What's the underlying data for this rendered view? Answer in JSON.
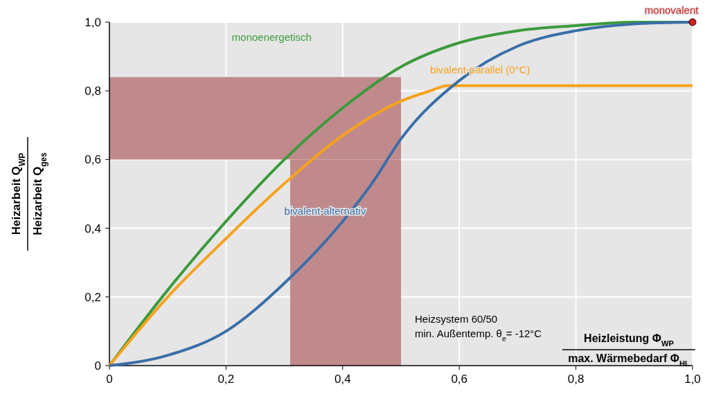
{
  "chart_data": {
    "type": "line",
    "xlabel": "Heizleistung Φ$_{WP}$\nmax. Wärmebedarf Φ$_{HL}$",
    "ylabel": "Heizarbeit Q$_{WP}$\nHeizarbeit Q$_{ges}$",
    "xlim": [
      0,
      1
    ],
    "ylim": [
      0,
      1
    ],
    "xticks": [
      0,
      {
        "value": 0.2,
        "label": "0,2"
      },
      {
        "value": 0.4,
        "label": "0,4"
      },
      {
        "value": 0.6,
        "label": "0,6"
      },
      {
        "value": 0.8,
        "label": "0,8"
      },
      {
        "value": 1,
        "label": "1,0"
      }
    ],
    "yticks": [
      0,
      {
        "value": 0.2,
        "label": "0,2"
      },
      {
        "value": 0.4,
        "label": "0,4"
      },
      {
        "value": 0.6,
        "label": "0,6"
      },
      {
        "value": 0.8,
        "label": "0,8"
      },
      {
        "value": 1,
        "label": "1,0"
      }
    ],
    "grid": true,
    "legend": false,
    "marker": "none",
    "line_style": "solid",
    "bands": [
      {
        "axis": "x",
        "from": 0.31,
        "to": 0.5,
        "color": "#c08a8c"
      },
      {
        "axis": "y",
        "from": 0.6,
        "to": 0.84,
        "color": "#c08a8c"
      }
    ],
    "series": [
      {
        "name": "monoenergetisch",
        "color": "#3c9a3c",
        "x": [
          0,
          0.1,
          0.2,
          0.3,
          0.4,
          0.5,
          0.6,
          0.7,
          0.8,
          0.9,
          1
        ],
        "values": [
          0,
          0.22,
          0.42,
          0.6,
          0.75,
          0.87,
          0.94,
          0.975,
          0.99,
          1,
          1
        ]
      },
      {
        "name": "bivalent-parallel (0°C)",
        "color": "#f7a21b",
        "x": [
          0,
          0.1,
          0.2,
          0.3,
          0.4,
          0.5,
          0.55,
          0.58,
          0.6,
          0.8,
          1
        ],
        "values": [
          0,
          0.2,
          0.37,
          0.53,
          0.67,
          0.77,
          0.8,
          0.815,
          0.815,
          0.815,
          0.815
        ]
      },
      {
        "name": "bivalent-alternativ",
        "color": "#3a6ea8",
        "x": [
          0,
          0.1,
          0.2,
          0.3,
          0.4,
          0.45,
          0.5,
          0.6,
          0.7,
          0.8,
          0.9,
          1
        ],
        "values": [
          0,
          0.03,
          0.1,
          0.24,
          0.42,
          0.53,
          0.66,
          0.83,
          0.93,
          0.975,
          0.995,
          1
        ]
      },
      {
        "name": "monovalent",
        "type": "scatter",
        "marker": "circle",
        "color": "#d62020",
        "x": [
          1
        ],
        "values": [
          1
        ]
      }
    ],
    "annotations": [
      "Heizsystem 60/50",
      "min. Außentemp. θ$_{e}$= -12°C"
    ]
  }
}
